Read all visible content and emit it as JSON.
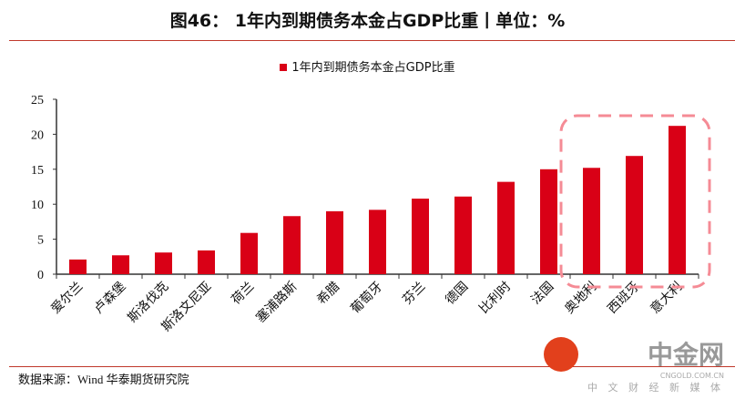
{
  "header": {
    "title": "图46：  1年内到期债务本金占GDP比重丨单位：%"
  },
  "footer": {
    "source": "数据来源：Wind   华泰期货研究院"
  },
  "watermark": {
    "name": "中金网",
    "tagline": "中 文 财 经 新 媒 体",
    "url": "CNGOLD.COM.CN"
  },
  "chart_data": {
    "type": "bar",
    "title": "图46：  1年内到期债务本金占GDP比重丨单位：%",
    "legend": [
      "1年内到期债务本金占GDP比重"
    ],
    "legend_position": "top-center",
    "categories": [
      "爱尔兰",
      "卢森堡",
      "斯洛伐克",
      "斯洛文尼亚",
      "荷兰",
      "塞浦路斯",
      "希腊",
      "葡萄牙",
      "芬兰",
      "德国",
      "比利时",
      "法国",
      "奥地利",
      "西班牙",
      "意大利"
    ],
    "values": [
      2.1,
      2.7,
      3.1,
      3.4,
      5.9,
      8.3,
      9.0,
      9.2,
      10.8,
      11.1,
      13.2,
      15.0,
      15.2,
      16.9,
      21.2
    ],
    "ylim": [
      0,
      25
    ],
    "yticks": [
      "0",
      "5",
      "10",
      "15",
      "20",
      "25"
    ],
    "xlabel": "",
    "ylabel": "",
    "grid": false,
    "highlight": [
      "奥地利",
      "西班牙",
      "意大利"
    ],
    "bar_color": "#d90016",
    "highlight_color": "#f58b95"
  }
}
